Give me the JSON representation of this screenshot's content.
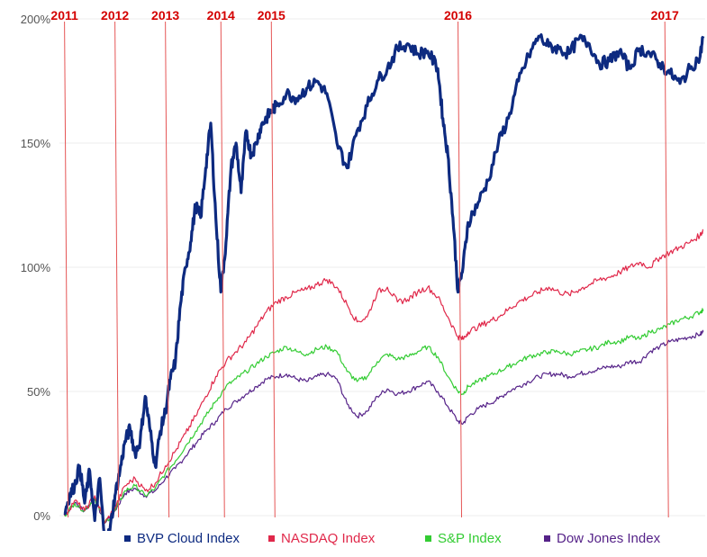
{
  "colors": {
    "bvp": "#0d2a80",
    "nasdaq": "#e0284a",
    "sp": "#33cc33",
    "dow": "#552288",
    "year_line": "#e55555",
    "grid": "#ececec",
    "year_text": "#d40000"
  },
  "chart_data": {
    "type": "line",
    "title": "",
    "xlabel": "",
    "ylabel": "",
    "ylim": [
      0,
      200
    ],
    "y_ticks": [
      {
        "value": 0,
        "label": "0%"
      },
      {
        "value": 50,
        "label": "50%"
      },
      {
        "value": 100,
        "label": "100%"
      },
      {
        "value": 150,
        "label": "150%"
      },
      {
        "value": 200,
        "label": "200%"
      }
    ],
    "x_range": [
      2010.95,
      2017.35
    ],
    "grid": "horizontal",
    "legend_position": "bottom",
    "year_markers": [
      {
        "label": "2011",
        "x": 2011.0
      },
      {
        "label": "2012",
        "x": 2011.5
      },
      {
        "label": "2013",
        "x": 2012.0
      },
      {
        "label": "2014",
        "x": 2012.55
      },
      {
        "label": "2015",
        "x": 2013.05
      },
      {
        "label": "2016",
        "x": 2014.9
      },
      {
        "label": "2017",
        "x": 2016.95
      }
    ],
    "series": [
      {
        "name": "BVP Cloud Index",
        "color": "#0d2a80",
        "x": [
          2011.0,
          2011.05,
          2011.1,
          2011.15,
          2011.2,
          2011.25,
          2011.3,
          2011.35,
          2011.4,
          2011.45,
          2011.5,
          2011.55,
          2011.6,
          2011.65,
          2011.7,
          2011.75,
          2011.8,
          2011.85,
          2011.9,
          2011.95,
          2012.0,
          2012.05,
          2012.1,
          2012.15,
          2012.2,
          2012.25,
          2012.3,
          2012.35,
          2012.4,
          2012.45,
          2012.5,
          2012.55,
          2012.6,
          2012.65,
          2012.7,
          2012.75,
          2012.8,
          2012.85,
          2012.9,
          2012.95,
          2013.0,
          2013.05,
          2013.1,
          2013.2,
          2013.3,
          2013.4,
          2013.5,
          2013.6,
          2013.7,
          2013.8,
          2013.9,
          2014.0,
          2014.1,
          2014.2,
          2014.3,
          2014.4,
          2014.5,
          2014.6,
          2014.7,
          2014.75,
          2014.8,
          2014.85,
          2014.9,
          2014.95,
          2015.0,
          2015.1,
          2015.2,
          2015.3,
          2015.4,
          2015.5,
          2015.6,
          2015.7,
          2015.8,
          2015.9,
          2016.0,
          2016.1,
          2016.2,
          2016.3,
          2016.4,
          2016.5,
          2016.6,
          2016.7,
          2016.8,
          2016.9,
          2017.0,
          2017.1,
          2017.2,
          2017.3,
          2017.33
        ],
        "values": [
          1,
          8,
          12,
          20,
          5,
          18,
          -2,
          15,
          -12,
          -6,
          8,
          18,
          30,
          35,
          25,
          30,
          48,
          34,
          20,
          34,
          42,
          55,
          62,
          85,
          100,
          110,
          125,
          120,
          140,
          158,
          120,
          90,
          110,
          140,
          150,
          130,
          155,
          145,
          150,
          157,
          160,
          163,
          165,
          170,
          168,
          172,
          175,
          170,
          150,
          140,
          155,
          165,
          175,
          180,
          188,
          190,
          186,
          187,
          180,
          160,
          145,
          120,
          90,
          100,
          118,
          126,
          135,
          150,
          160,
          175,
          185,
          193,
          189,
          188,
          186,
          192,
          190,
          182,
          183,
          187,
          180,
          188,
          186,
          182,
          178,
          174,
          180,
          185,
          193
        ]
      },
      {
        "name": "NASDAQ Index",
        "color": "#e0284a",
        "x": [
          2011.0,
          2011.1,
          2011.2,
          2011.3,
          2011.4,
          2011.5,
          2011.6,
          2011.7,
          2011.8,
          2011.9,
          2012.0,
          2012.1,
          2012.2,
          2012.3,
          2012.4,
          2012.5,
          2012.6,
          2012.7,
          2012.8,
          2012.9,
          2013.0,
          2013.1,
          2013.2,
          2013.3,
          2013.4,
          2013.5,
          2013.6,
          2013.7,
          2013.8,
          2013.9,
          2014.0,
          2014.1,
          2014.2,
          2014.3,
          2014.4,
          2014.5,
          2014.6,
          2014.7,
          2014.8,
          2014.9,
          2014.95,
          2015.0,
          2015.1,
          2015.2,
          2015.3,
          2015.4,
          2015.5,
          2015.6,
          2015.7,
          2015.8,
          2015.9,
          2016.0,
          2016.1,
          2016.2,
          2016.3,
          2016.4,
          2016.5,
          2016.6,
          2016.7,
          2016.8,
          2016.9,
          2017.0,
          2017.1,
          2017.2,
          2017.3,
          2017.33
        ],
        "values": [
          0,
          6,
          2,
          8,
          -3,
          3,
          12,
          15,
          10,
          13,
          20,
          26,
          33,
          40,
          48,
          56,
          62,
          66,
          70,
          76,
          82,
          86,
          88,
          90,
          91,
          93,
          95,
          92,
          85,
          78,
          80,
          90,
          92,
          86,
          87,
          90,
          92,
          88,
          80,
          72,
          71,
          74,
          76,
          78,
          80,
          83,
          86,
          88,
          90,
          92,
          90,
          89,
          91,
          93,
          95,
          96,
          98,
          100,
          102,
          100,
          104,
          106,
          108,
          110,
          113,
          115
        ]
      },
      {
        "name": "S&P Index",
        "color": "#33cc33",
        "x": [
          2011.0,
          2011.1,
          2011.2,
          2011.3,
          2011.4,
          2011.5,
          2011.6,
          2011.7,
          2011.8,
          2011.9,
          2012.0,
          2012.1,
          2012.2,
          2012.3,
          2012.4,
          2012.5,
          2012.6,
          2012.7,
          2012.8,
          2012.9,
          2013.0,
          2013.1,
          2013.2,
          2013.3,
          2013.4,
          2013.5,
          2013.6,
          2013.7,
          2013.8,
          2013.9,
          2014.0,
          2014.1,
          2014.2,
          2014.3,
          2014.4,
          2014.5,
          2014.6,
          2014.7,
          2014.8,
          2014.9,
          2014.95,
          2015.0,
          2015.1,
          2015.2,
          2015.3,
          2015.4,
          2015.5,
          2015.6,
          2015.7,
          2015.8,
          2015.9,
          2016.0,
          2016.1,
          2016.2,
          2016.3,
          2016.4,
          2016.5,
          2016.6,
          2016.7,
          2016.8,
          2016.9,
          2017.0,
          2017.1,
          2017.2,
          2017.3,
          2017.33
        ],
        "values": [
          0,
          5,
          2,
          7,
          -3,
          2,
          10,
          12,
          8,
          11,
          17,
          22,
          28,
          34,
          40,
          46,
          52,
          55,
          58,
          61,
          64,
          66,
          68,
          66,
          65,
          67,
          68,
          66,
          58,
          54,
          56,
          62,
          65,
          63,
          64,
          66,
          68,
          64,
          56,
          50,
          49,
          52,
          54,
          56,
          58,
          60,
          62,
          64,
          65,
          66,
          66,
          65,
          66,
          67,
          68,
          70,
          70,
          72,
          71,
          74,
          75,
          77,
          79,
          80,
          82,
          83
        ]
      },
      {
        "name": "Dow Jones Index",
        "color": "#552288",
        "x": [
          2011.0,
          2011.1,
          2011.2,
          2011.3,
          2011.4,
          2011.5,
          2011.6,
          2011.7,
          2011.8,
          2011.9,
          2012.0,
          2012.1,
          2012.2,
          2012.3,
          2012.4,
          2012.5,
          2012.6,
          2012.7,
          2012.8,
          2012.9,
          2013.0,
          2013.1,
          2013.2,
          2013.3,
          2013.4,
          2013.5,
          2013.6,
          2013.7,
          2013.8,
          2013.9,
          2014.0,
          2014.1,
          2014.2,
          2014.3,
          2014.4,
          2014.5,
          2014.6,
          2014.7,
          2014.8,
          2014.9,
          2014.95,
          2015.0,
          2015.1,
          2015.2,
          2015.3,
          2015.4,
          2015.5,
          2015.6,
          2015.7,
          2015.8,
          2015.9,
          2016.0,
          2016.1,
          2016.2,
          2016.3,
          2016.4,
          2016.5,
          2016.6,
          2016.7,
          2016.8,
          2016.9,
          2017.0,
          2017.1,
          2017.2,
          2017.3,
          2017.33
        ],
        "values": [
          0,
          5,
          2,
          7,
          -3,
          2,
          9,
          11,
          8,
          10,
          15,
          19,
          24,
          29,
          34,
          38,
          43,
          46,
          49,
          52,
          55,
          56,
          57,
          55,
          54,
          56,
          57,
          55,
          45,
          40,
          42,
          48,
          51,
          49,
          50,
          52,
          54,
          50,
          44,
          38,
          37,
          40,
          43,
          45,
          47,
          50,
          52,
          54,
          56,
          57,
          57,
          56,
          57,
          58,
          59,
          60,
          60,
          62,
          62,
          66,
          68,
          70,
          71,
          72,
          73,
          74
        ]
      }
    ]
  }
}
